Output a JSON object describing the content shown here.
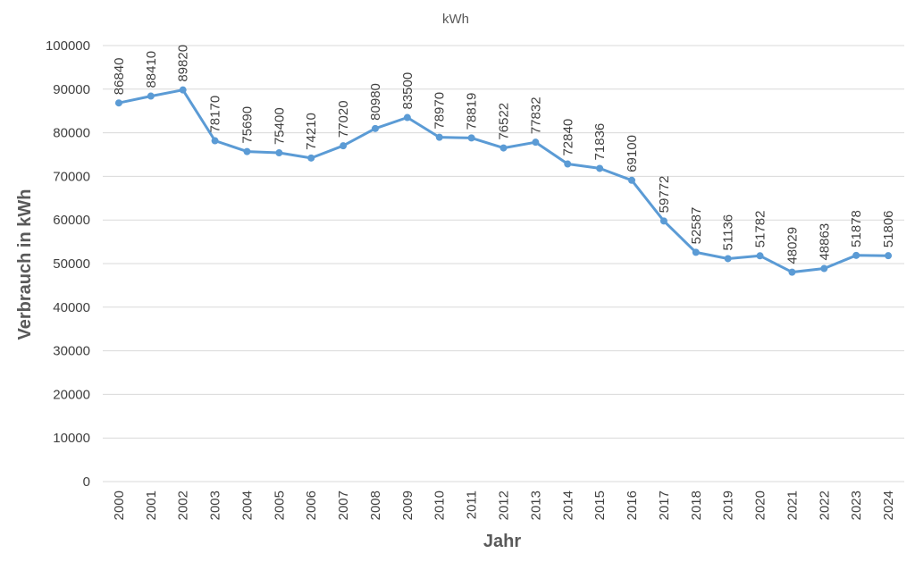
{
  "chart_data": {
    "type": "line",
    "title": "kWh",
    "xlabel": "Jahr",
    "ylabel": "Verbrauch in kWh",
    "ylim": [
      0,
      100000
    ],
    "yticks": [
      0,
      10000,
      20000,
      30000,
      40000,
      50000,
      60000,
      70000,
      80000,
      90000,
      100000
    ],
    "grid": true,
    "categories": [
      "2000",
      "2001",
      "2002",
      "2003",
      "2004",
      "2005",
      "2006",
      "2007",
      "2008",
      "2009",
      "2010",
      "2011",
      "2012",
      "2013",
      "2014",
      "2015",
      "2016",
      "2017",
      "2018",
      "2019",
      "2020",
      "2021",
      "2022",
      "2023",
      "2024"
    ],
    "series": [
      {
        "color": "#5b9bd5",
        "values": [
          86840,
          88410,
          89820,
          78170,
          75690,
          75400,
          74210,
          77020,
          80980,
          83500,
          78970,
          78819,
          76522,
          77832,
          72840,
          71836,
          69100,
          59772,
          52587,
          51136,
          51782,
          48029,
          48863,
          51878,
          51806
        ]
      }
    ]
  }
}
